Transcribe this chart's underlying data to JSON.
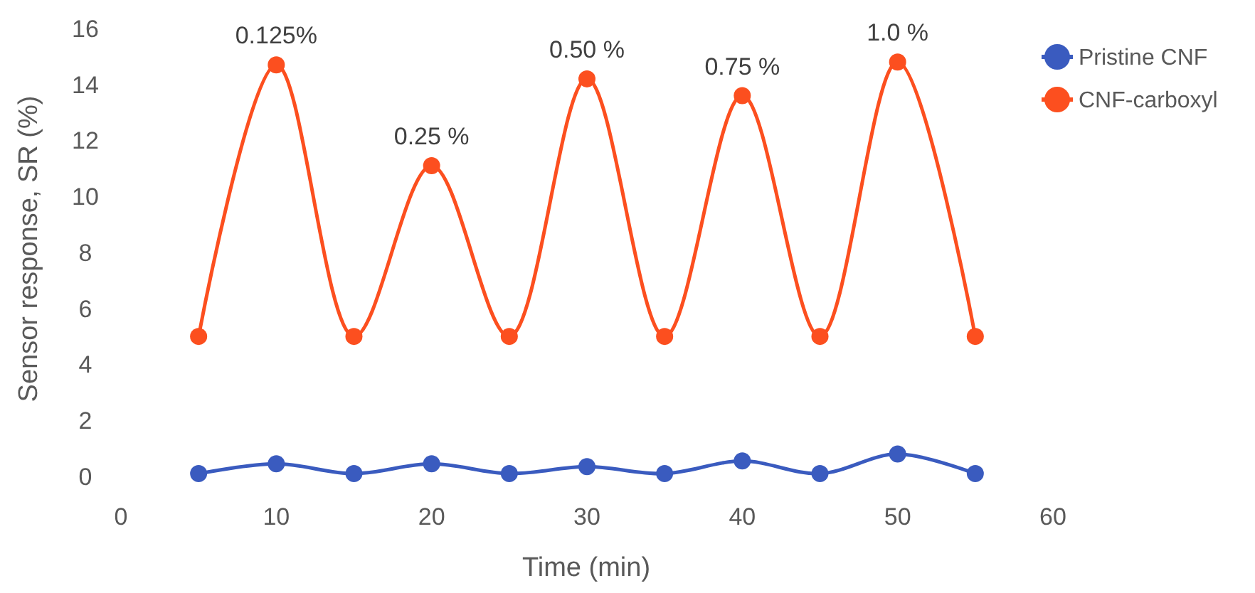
{
  "chart_data": {
    "type": "line",
    "xlabel": "Time (min)",
    "ylabel": "Sensor response, SR (%)",
    "xlim": [
      0,
      60
    ],
    "xticks": [
      0,
      10,
      20,
      30,
      40,
      50,
      60
    ],
    "ylim": [
      0,
      16
    ],
    "yticks": [
      0,
      2,
      4,
      6,
      8,
      10,
      12,
      14,
      16
    ],
    "x": [
      5,
      10,
      15,
      20,
      25,
      30,
      35,
      40,
      45,
      50,
      55
    ],
    "series": [
      {
        "name": "Pristine CNF",
        "color": "#3a5bbf",
        "values": [
          0.1,
          0.45,
          0.1,
          0.45,
          0.1,
          0.35,
          0.1,
          0.55,
          0.1,
          0.8,
          0.1
        ]
      },
      {
        "name": "CNF-carboxyl",
        "color": "#fc4f1f",
        "values": [
          5.0,
          14.7,
          5.0,
          11.1,
          5.0,
          14.2,
          5.0,
          13.6,
          5.0,
          14.8,
          5.0
        ]
      }
    ],
    "annotations": [
      {
        "text": "0.125%",
        "x": 10,
        "y": 14.7
      },
      {
        "text": "0.25 %",
        "x": 20,
        "y": 11.1
      },
      {
        "text": "0.50 %",
        "x": 30,
        "y": 14.2
      },
      {
        "text": "0.75 %",
        "x": 40,
        "y": 13.6
      },
      {
        "text": "1.0 %",
        "x": 50,
        "y": 14.8
      }
    ],
    "legend": "right",
    "marker": "circle",
    "grid": false
  }
}
